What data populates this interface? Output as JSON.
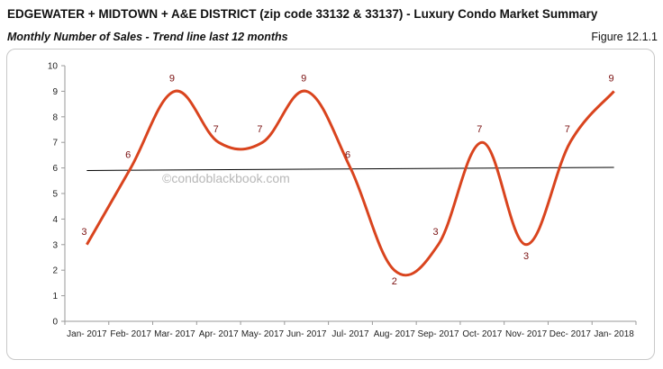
{
  "header": {
    "title": "EDGEWATER + MIDTOWN + A&E DISTRICT (zip code 33132 & 33137) - Luxury Condo Market Summary",
    "subtitle": "Monthly Number of Sales - Trend line last 12 months",
    "figure_label": "Figure 12.1.1"
  },
  "watermark": "©condoblackbook.com",
  "chart_data": {
    "type": "line",
    "title": "Monthly Number of Sales - Trend line last 12 months",
    "xlabel": "",
    "ylabel": "",
    "categories": [
      "Jan- 2017",
      "Feb- 2017",
      "Mar- 2017",
      "Apr- 2017",
      "May- 2017",
      "Jun- 2017",
      "Jul- 2017",
      "Aug- 2017",
      "Sep- 2017",
      "Oct- 2017",
      "Nov- 2017",
      "Dec- 2017",
      "Jan- 2018"
    ],
    "y_ticks": [
      "0",
      "1",
      "2",
      "3",
      "4",
      "5",
      "6",
      "7",
      "8",
      "9",
      "10"
    ],
    "ylim": [
      0,
      10
    ],
    "series": [
      {
        "values": [
          3,
          6,
          9,
          7,
          7,
          9,
          6,
          2,
          3,
          7,
          3,
          7,
          9
        ],
        "labels": [
          "3",
          "6",
          "9",
          "7",
          "7",
          "9",
          "6",
          "2",
          "3",
          "7",
          "3",
          "7",
          "9"
        ],
        "color": "#d9441e",
        "smooth": true
      }
    ],
    "trendline": {
      "start": 5.9,
      "end": 6.02,
      "color": "#000000"
    },
    "grid": false,
    "legend": "none"
  }
}
